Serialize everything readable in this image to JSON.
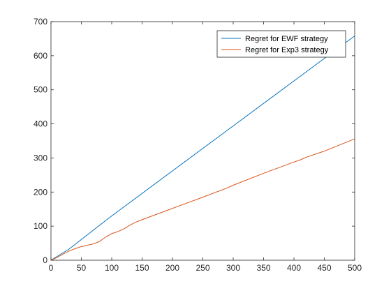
{
  "chart_data": {
    "type": "line",
    "title": "",
    "xlabel": "",
    "ylabel": "",
    "xlim": [
      0,
      500
    ],
    "ylim": [
      0,
      700
    ],
    "xticks": [
      0,
      50,
      100,
      150,
      200,
      250,
      300,
      350,
      400,
      450,
      500
    ],
    "yticks": [
      0,
      100,
      200,
      300,
      400,
      500,
      600,
      700
    ],
    "grid": false,
    "legend_position": "top-right",
    "series": [
      {
        "name": "Regret for EWF strategy",
        "color": "#0072BD",
        "points": [
          [
            0,
            0
          ],
          [
            30,
            33
          ],
          [
            100,
            130
          ],
          [
            200,
            262
          ],
          [
            300,
            394
          ],
          [
            400,
            526
          ],
          [
            500,
            658
          ]
        ]
      },
      {
        "name": "Regret for Exp3 strategy",
        "color": "#D95319",
        "points": [
          [
            0,
            0
          ],
          [
            10,
            8
          ],
          [
            20,
            18
          ],
          [
            30,
            27
          ],
          [
            40,
            34
          ],
          [
            50,
            40
          ],
          [
            60,
            44
          ],
          [
            70,
            48
          ],
          [
            80,
            55
          ],
          [
            90,
            68
          ],
          [
            100,
            78
          ],
          [
            110,
            84
          ],
          [
            120,
            92
          ],
          [
            130,
            103
          ],
          [
            140,
            112
          ],
          [
            150,
            119
          ],
          [
            200,
            152
          ],
          [
            250,
            185
          ],
          [
            290,
            212
          ],
          [
            300,
            220
          ],
          [
            350,
            255
          ],
          [
            400,
            288
          ],
          [
            410,
            294
          ],
          [
            420,
            302
          ],
          [
            450,
            320
          ],
          [
            500,
            356
          ]
        ]
      }
    ]
  }
}
